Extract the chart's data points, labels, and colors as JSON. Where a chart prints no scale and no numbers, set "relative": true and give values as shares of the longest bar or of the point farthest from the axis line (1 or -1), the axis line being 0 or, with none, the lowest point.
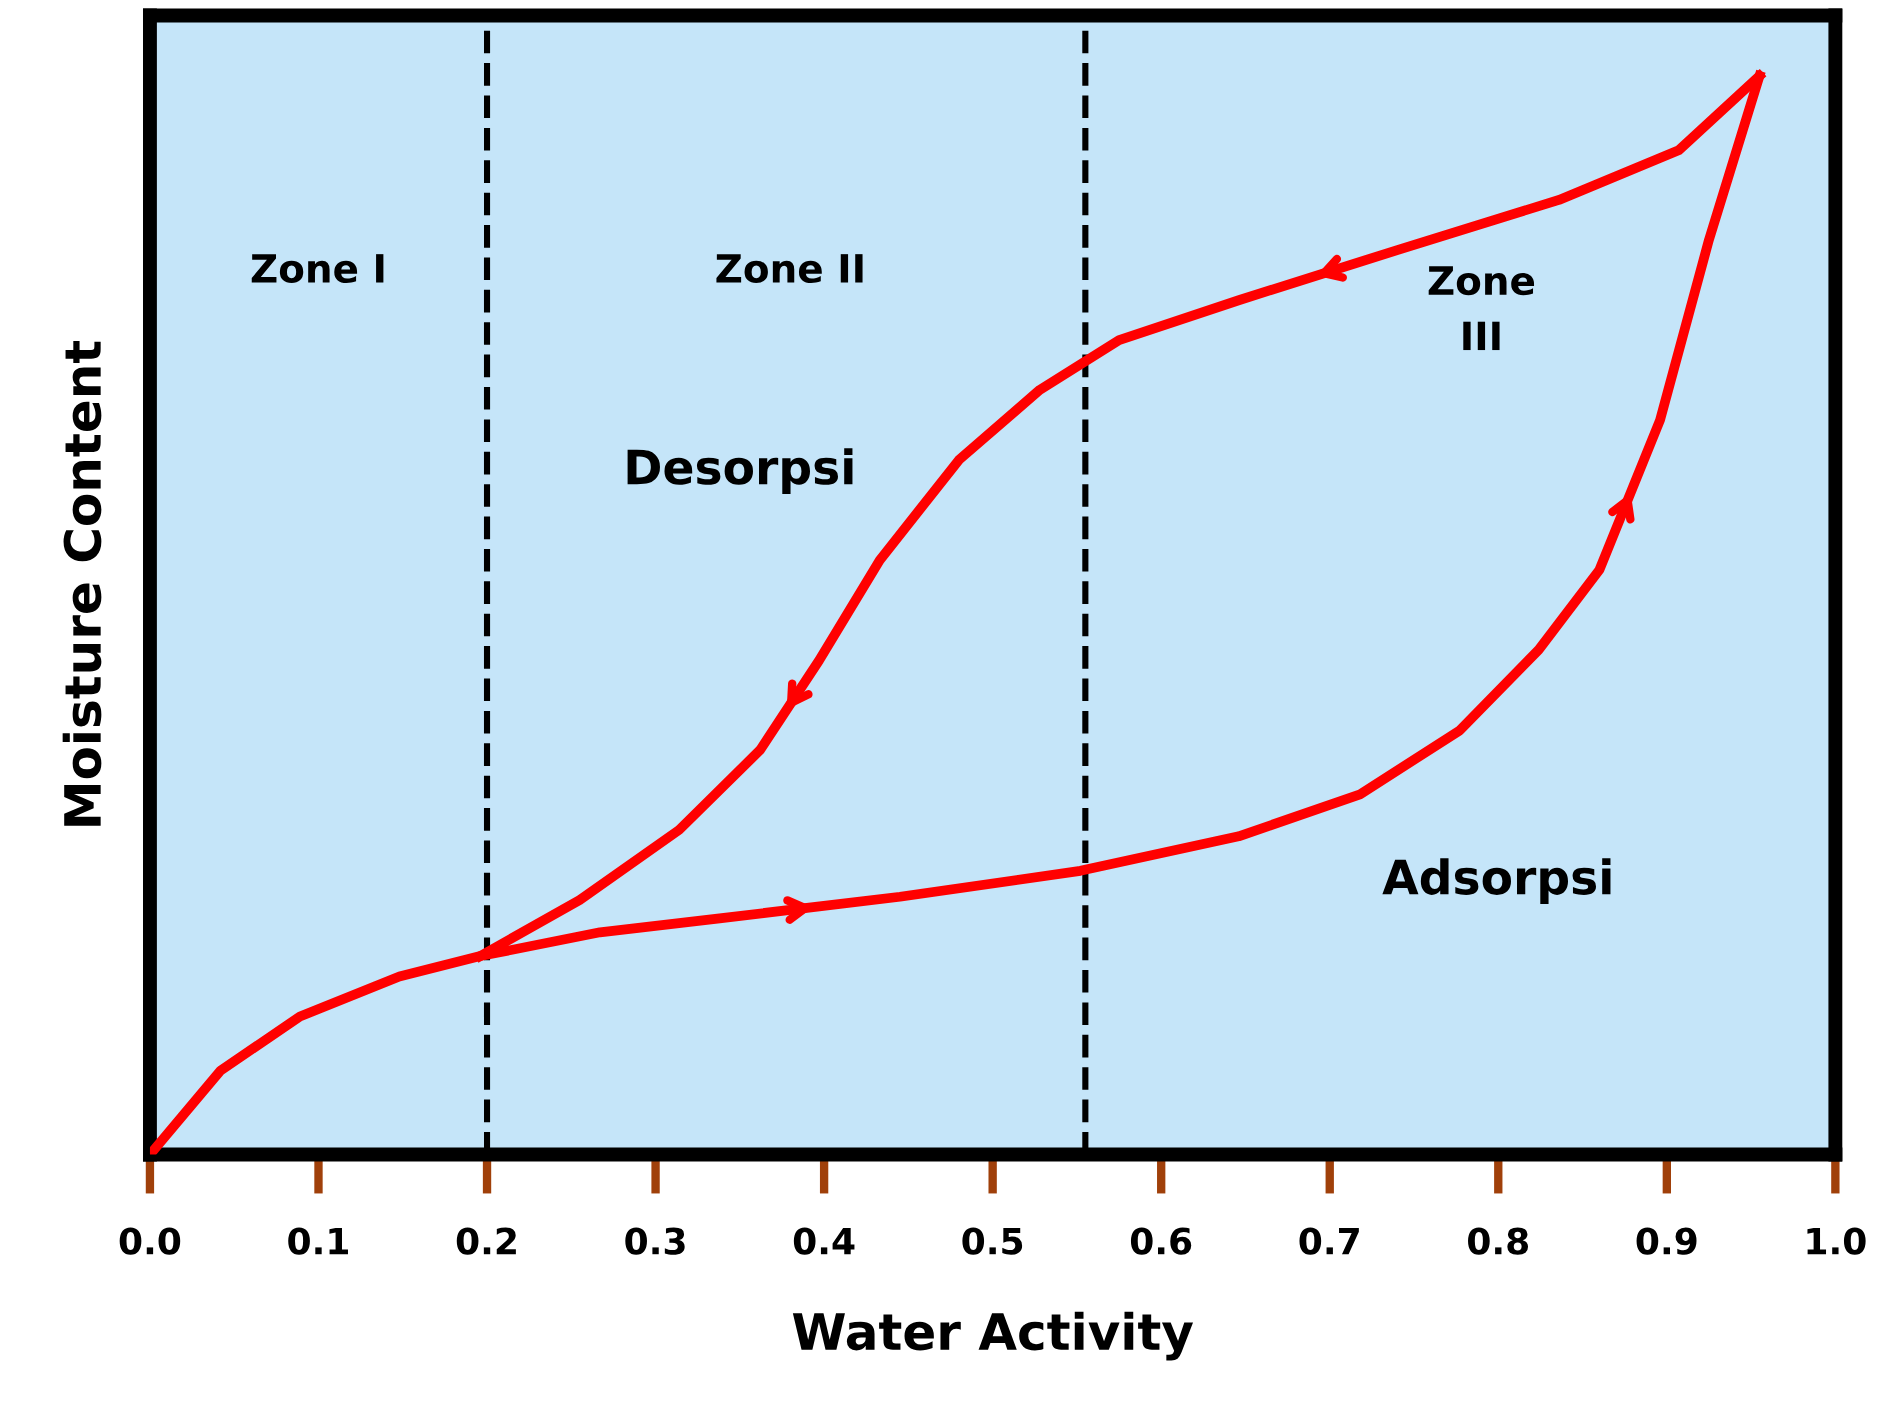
{
  "chart_data": {
    "type": "line",
    "relative": true,
    "xlabel": "Water Activity",
    "ylabel": "Moisture Content",
    "xlim": [
      0,
      1
    ],
    "xticks": [
      {
        "value": 0,
        "label": "0.0"
      },
      0.1,
      0.2,
      0.3,
      0.4,
      0.5,
      0.6,
      0.7,
      0.8,
      0.9,
      {
        "value": 1,
        "label": "1.0"
      }
    ],
    "grid": false,
    "legend": false,
    "line_style": "solid",
    "marker": "none",
    "series": [
      {
        "name": "Adsorpsi",
        "color": "#ff0000",
        "x": [
          0.0,
          0.042,
          0.089,
          0.148,
          0.196,
          0.267,
          0.338,
          0.445,
          0.552,
          0.646,
          0.718,
          0.777,
          0.824,
          0.86,
          0.896,
          0.925,
          0.955
        ],
        "values": [
          0.0,
          0.078,
          0.128,
          0.165,
          0.184,
          0.206,
          0.219,
          0.239,
          0.263,
          0.295,
          0.334,
          0.393,
          0.468,
          0.542,
          0.681,
          0.848,
          1.0
        ]
      },
      {
        "name": "Desorpsi",
        "color": "#ff0000",
        "x": [
          0.955,
          0.907,
          0.836,
          0.741,
          0.646,
          0.575,
          0.528,
          0.48,
          0.433,
          0.397,
          0.362,
          0.314,
          0.255,
          0.196
        ],
        "values": [
          1.0,
          0.931,
          0.885,
          0.839,
          0.792,
          0.755,
          0.709,
          0.644,
          0.551,
          0.458,
          0.375,
          0.301,
          0.236,
          0.184
        ]
      }
    ],
    "ref_lines": [
      {
        "axis": "x",
        "value": 0.2,
        "color": "#000000",
        "line_style": "dashed"
      },
      {
        "axis": "x",
        "value": 0.555,
        "color": "#000000",
        "line_style": "dashed"
      }
    ],
    "annotations": [
      "Zone I",
      "Zone II",
      "Zone\nIII"
    ]
  }
}
